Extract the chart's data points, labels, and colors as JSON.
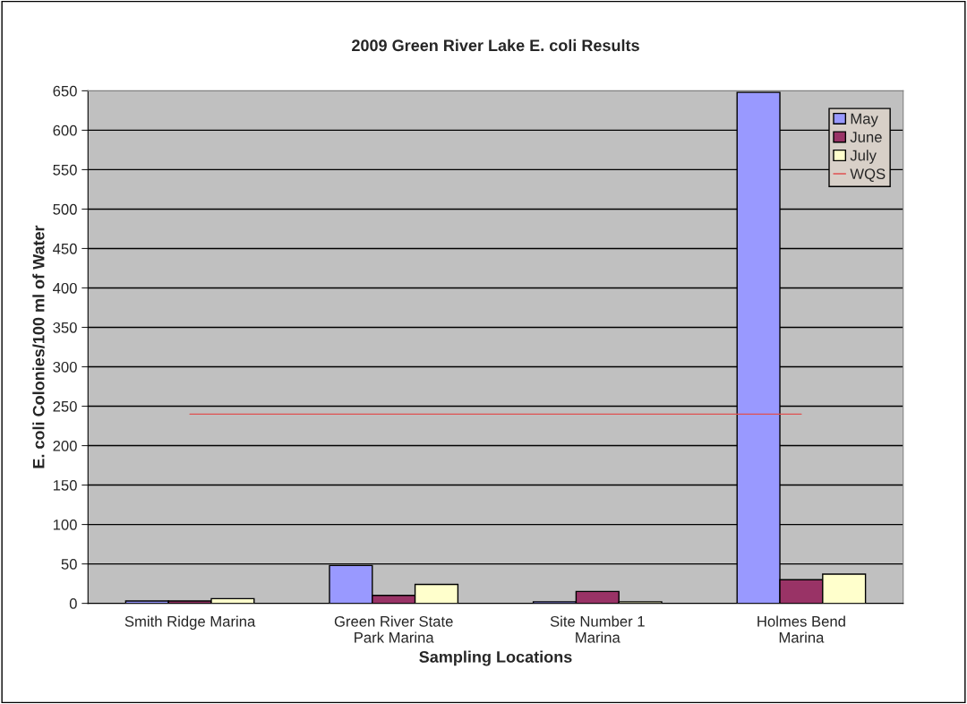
{
  "chart_data": {
    "type": "bar",
    "title": "2009 Green River Lake E. coli Results",
    "xlabel": "Sampling Locations",
    "ylabel": "E. coli Colonies/100 ml of Water",
    "categories": [
      "Smith Ridge Marina",
      "Green River State\nPark Marina",
      "Site Number 1\nMarina",
      "Holmes Bend\nMarina"
    ],
    "series": [
      {
        "name": "May",
        "color": "#9999ff",
        "values": [
          3,
          48,
          2,
          648
        ]
      },
      {
        "name": "June",
        "color": "#993366",
        "values": [
          3,
          10,
          15,
          30
        ]
      },
      {
        "name": "July",
        "color": "#ffffcc",
        "values": [
          6,
          24,
          2,
          37
        ]
      },
      {
        "name": "WQS",
        "type": "line",
        "color": "#e05050",
        "values": [
          240,
          240,
          240,
          240
        ]
      }
    ],
    "ylim": [
      0,
      650
    ],
    "yticks": [
      0,
      50,
      100,
      150,
      200,
      250,
      300,
      350,
      400,
      450,
      500,
      550,
      600,
      650
    ],
    "grid": "y",
    "legend": "right"
  }
}
